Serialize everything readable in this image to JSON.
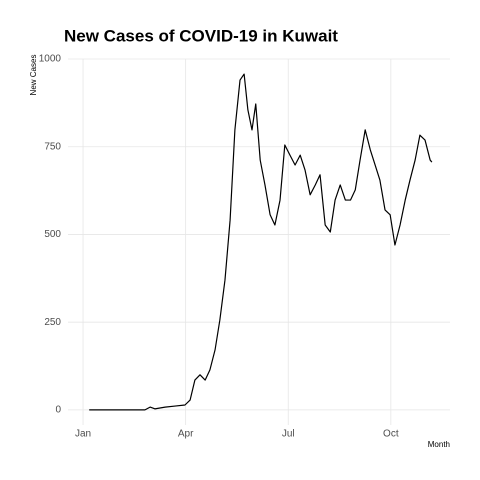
{
  "chart_data": {
    "type": "line",
    "title": "New Cases of COVID-19 in Kuwait",
    "x_label": "Month",
    "y_label": "New Cases",
    "x": [
      1.18,
      2.81,
      2.96,
      3.1,
      3.4,
      3.69,
      3.98,
      4.13,
      4.27,
      4.42,
      4.57,
      4.71,
      4.86,
      5.0,
      5.15,
      5.3,
      5.44,
      5.59,
      5.71,
      5.82,
      5.94,
      6.05,
      6.18,
      6.32,
      6.47,
      6.61,
      6.76,
      6.9,
      7.05,
      7.2,
      7.35,
      7.49,
      7.64,
      7.79,
      7.93,
      8.08,
      8.23,
      8.37,
      8.52,
      8.67,
      8.82,
      8.96,
      9.1,
      9.25,
      9.4,
      9.54,
      9.68,
      9.83,
      9.98,
      10.12,
      10.27,
      10.42,
      10.56,
      10.71,
      10.85,
      11.0,
      11.15,
      11.2
    ],
    "series": [
      {
        "name": "New Cases",
        "color": "#000000",
        "values": [
          0,
          0,
          8,
          3,
          8,
          11,
          14,
          28,
          85,
          100,
          85,
          114,
          171,
          256,
          370,
          541,
          798,
          940,
          957,
          855,
          798,
          872,
          712,
          641,
          556,
          527,
          598,
          755,
          726,
          698,
          726,
          684,
          613,
          641,
          670,
          527,
          507,
          598,
          641,
          598,
          598,
          627,
          712,
          798,
          741,
          698,
          655,
          570,
          556,
          470,
          527,
          598,
          655,
          712,
          783,
          769,
          712,
          706
        ]
      }
    ],
    "xlim": [
      0.56,
      11.73
    ],
    "xticks": [
      {
        "value": 1,
        "label": "Jan"
      },
      {
        "value": 4,
        "label": "Apr"
      },
      {
        "value": 7,
        "label": "Jul"
      },
      {
        "value": 10,
        "label": "Oct"
      }
    ],
    "ylim": [
      -43,
      1000
    ],
    "yticks": [
      0,
      250,
      500,
      750,
      1000
    ],
    "grid": true
  }
}
